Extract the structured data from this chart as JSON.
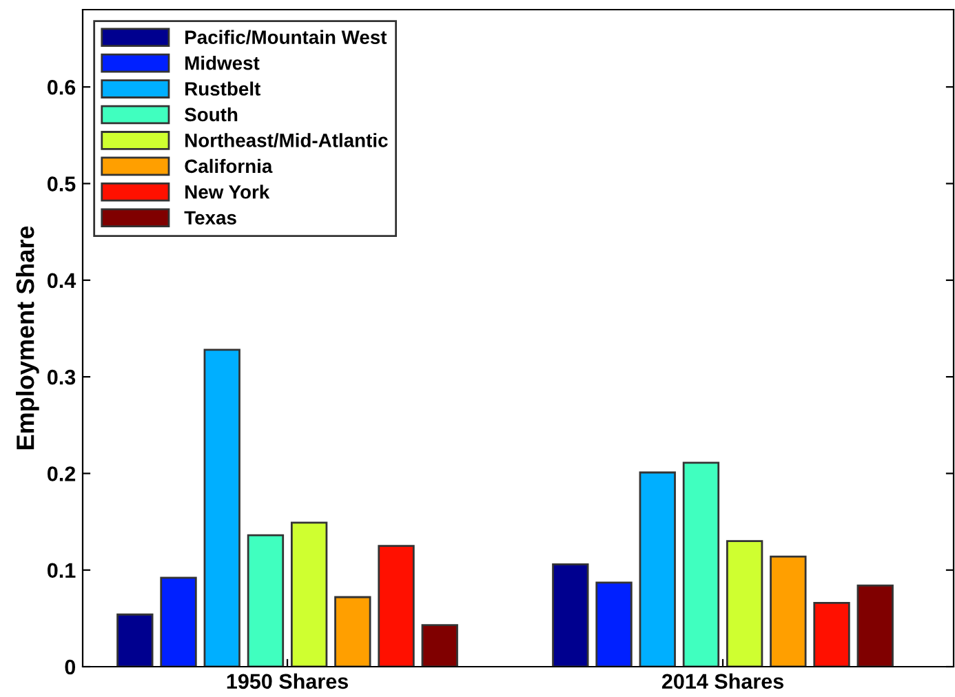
{
  "chart_data": {
    "type": "bar",
    "ylabel": "Employment Share",
    "categories": [
      "1950 Shares",
      "2014 Shares"
    ],
    "series": [
      {
        "name": "Pacific/Mountain West",
        "color": "#00008f",
        "values": [
          0.054,
          0.106
        ]
      },
      {
        "name": "Midwest",
        "color": "#0020ff",
        "values": [
          0.092,
          0.087
        ]
      },
      {
        "name": "Rustbelt",
        "color": "#00afff",
        "values": [
          0.328,
          0.201
        ]
      },
      {
        "name": "South",
        "color": "#40ffbf",
        "values": [
          0.136,
          0.211
        ]
      },
      {
        "name": "Northeast/Mid-Atlantic",
        "color": "#cfff30",
        "values": [
          0.149,
          0.13
        ]
      },
      {
        "name": "California",
        "color": "#ff9f00",
        "values": [
          0.072,
          0.114
        ]
      },
      {
        "name": "New York",
        "color": "#ff1000",
        "values": [
          0.125,
          0.066
        ]
      },
      {
        "name": "Texas",
        "color": "#800000",
        "values": [
          0.043,
          0.084
        ]
      }
    ],
    "ylim": [
      0,
      0.68
    ],
    "yticks": [
      0,
      0.1,
      0.2,
      0.3,
      0.4,
      0.5,
      0.6
    ],
    "grid": false,
    "legend": "top left"
  }
}
